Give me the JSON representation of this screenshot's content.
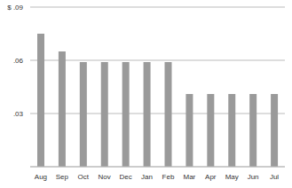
{
  "chart_data": {
    "type": "bar",
    "categories": [
      "Aug",
      "Sep",
      "Oct",
      "Nov",
      "Dec",
      "Jan",
      "Feb",
      "Mar",
      "Apr",
      "May",
      "Jun",
      "Jul"
    ],
    "values": [
      0.075,
      0.065,
      0.059,
      0.059,
      0.059,
      0.059,
      0.059,
      0.041,
      0.041,
      0.041,
      0.041,
      0.041
    ],
    "color": "#9a9a9a",
    "ylim": [
      0,
      0.09
    ],
    "yticks": [
      {
        "value": 0.03,
        "label": ".03"
      },
      {
        "value": 0.06,
        "label": ".06"
      },
      {
        "value": 0.09,
        "label": "$ .09"
      }
    ],
    "grid": true
  }
}
